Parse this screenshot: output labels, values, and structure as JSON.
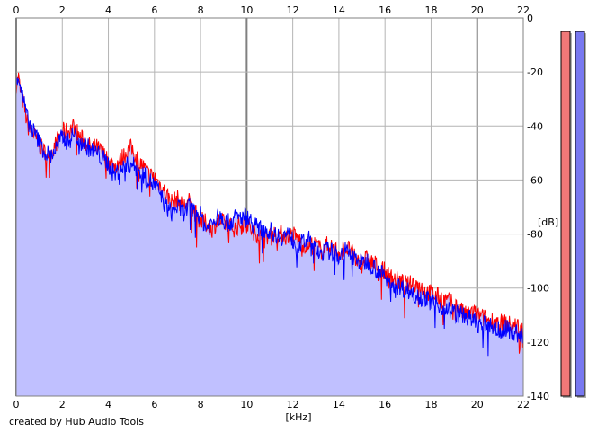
{
  "credit": "created by Hub Audio Tools",
  "chart_data": {
    "type": "line",
    "xlabel": "[kHz]",
    "ylabel": "[dB]",
    "xlim": [
      0,
      22
    ],
    "ylim": [
      -140,
      0
    ],
    "x_ticks": [
      0,
      2,
      4,
      6,
      8,
      10,
      12,
      14,
      16,
      18,
      20,
      22
    ],
    "y_ticks": [
      0,
      -20,
      -40,
      -60,
      -80,
      -100,
      -120,
      -140
    ],
    "grid": true,
    "fill_color": "#c0c0ff",
    "series": [
      {
        "color": "#ff0000",
        "x": [
          0.0,
          0.1,
          0.2,
          0.35,
          0.5,
          0.75,
          1.0,
          1.25,
          1.5,
          1.75,
          2.0,
          2.25,
          2.5,
          2.75,
          3.0,
          3.25,
          3.5,
          3.75,
          4.0,
          4.25,
          4.5,
          4.75,
          5.0,
          5.25,
          5.5,
          5.75,
          6.0,
          6.25,
          6.5,
          6.75,
          7.0,
          7.25,
          7.5,
          7.75,
          8.0,
          8.25,
          8.5,
          8.75,
          9.0,
          9.25,
          9.5,
          9.75,
          10.0,
          10.25,
          10.5,
          10.75,
          11.0,
          11.25,
          11.5,
          11.75,
          12.0,
          12.25,
          12.5,
          12.75,
          13.0,
          13.25,
          13.5,
          13.75,
          14.0,
          14.25,
          14.5,
          14.75,
          15.0,
          15.25,
          15.5,
          15.75,
          16.0,
          16.25,
          16.5,
          16.75,
          17.0,
          17.25,
          17.5,
          17.75,
          18.0,
          18.25,
          18.5,
          18.75,
          19.0,
          19.25,
          19.5,
          19.75,
          20.0,
          20.25,
          20.5,
          20.75,
          21.0,
          21.25,
          21.5,
          21.75,
          22.0
        ],
        "values": [
          -25,
          -22,
          -28,
          -33,
          -40,
          -43,
          -47,
          -50,
          -50,
          -46,
          -42,
          -42,
          -40,
          -44,
          -46,
          -48,
          -48,
          -50,
          -53,
          -55,
          -53,
          -50,
          -48,
          -52,
          -55,
          -58,
          -59,
          -62,
          -65,
          -68,
          -67,
          -70,
          -68,
          -72,
          -75,
          -76,
          -78,
          -75,
          -76,
          -77,
          -78,
          -76,
          -76,
          -79,
          -80,
          -82,
          -80,
          -80,
          -80,
          -81,
          -80,
          -82,
          -84,
          -84,
          -84,
          -86,
          -84,
          -85,
          -87,
          -85,
          -86,
          -90,
          -90,
          -89,
          -91,
          -92,
          -94,
          -96,
          -97,
          -98,
          -99,
          -98,
          -99,
          -101,
          -102,
          -103,
          -104,
          -105,
          -106,
          -108,
          -110,
          -109,
          -110,
          -111,
          -112,
          -112,
          -113,
          -113,
          -114,
          -114,
          -116
        ]
      },
      {
        "color": "#0000ff",
        "x": [
          0.0,
          0.1,
          0.2,
          0.35,
          0.5,
          0.75,
          1.0,
          1.25,
          1.5,
          1.75,
          2.0,
          2.25,
          2.5,
          2.75,
          3.0,
          3.25,
          3.5,
          3.75,
          4.0,
          4.25,
          4.5,
          4.75,
          5.0,
          5.25,
          5.5,
          5.75,
          6.0,
          6.25,
          6.5,
          6.75,
          7.0,
          7.25,
          7.5,
          7.75,
          8.0,
          8.25,
          8.5,
          8.75,
          9.0,
          9.25,
          9.5,
          9.75,
          10.0,
          10.25,
          10.5,
          10.75,
          11.0,
          11.25,
          11.5,
          11.75,
          12.0,
          12.25,
          12.5,
          12.75,
          13.0,
          13.25,
          13.5,
          13.75,
          14.0,
          14.25,
          14.5,
          14.75,
          15.0,
          15.25,
          15.5,
          15.75,
          16.0,
          16.25,
          16.5,
          16.75,
          17.0,
          17.25,
          17.5,
          17.75,
          18.0,
          18.25,
          18.5,
          18.75,
          19.0,
          19.25,
          19.5,
          19.75,
          20.0,
          20.25,
          20.5,
          20.75,
          21.0,
          21.25,
          21.5,
          21.75,
          22.0
        ],
        "values": [
          -23,
          -21,
          -26,
          -32,
          -38,
          -42,
          -46,
          -50,
          -51,
          -48,
          -44,
          -46,
          -43,
          -45,
          -47,
          -49,
          -50,
          -52,
          -54,
          -58,
          -56,
          -55,
          -54,
          -56,
          -58,
          -60,
          -62,
          -65,
          -70,
          -72,
          -70,
          -72,
          -70,
          -72,
          -73,
          -78,
          -76,
          -74,
          -75,
          -76,
          -74,
          -74,
          -73,
          -76,
          -78,
          -78,
          -79,
          -80,
          -81,
          -80,
          -82,
          -84,
          -83,
          -82,
          -86,
          -87,
          -86,
          -87,
          -88,
          -86,
          -88,
          -89,
          -91,
          -90,
          -92,
          -94,
          -96,
          -98,
          -99,
          -100,
          -101,
          -102,
          -103,
          -104,
          -105,
          -106,
          -107,
          -108,
          -109,
          -110,
          -110,
          -112,
          -113,
          -114,
          -113,
          -115,
          -116,
          -115,
          -116,
          -117,
          -118
        ]
      }
    ],
    "level_meters": [
      {
        "color": "#f07878",
        "level_db": -5
      },
      {
        "color": "#7878f0",
        "level_db": -5
      }
    ]
  }
}
